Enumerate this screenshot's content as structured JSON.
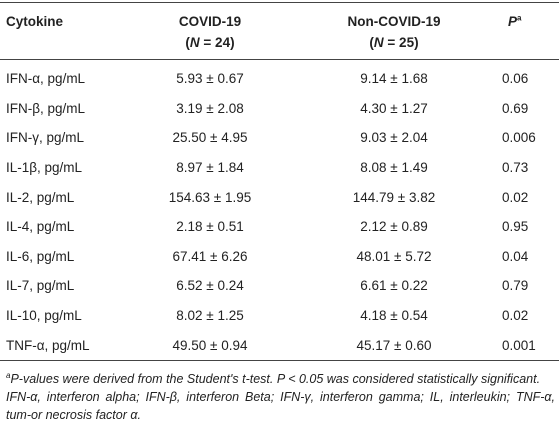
{
  "header": {
    "cytokine": "Cytokine",
    "covid": {
      "name": "COVID-19",
      "n": [
        "(",
        "N",
        " = 24)"
      ]
    },
    "noncovid": {
      "name": "Non-COVID-19",
      "n": [
        "(",
        "N",
        " = 25)"
      ]
    },
    "p": [
      "P",
      "a"
    ]
  },
  "table": {
    "rows": [
      [
        "IFN-α, pg/mL",
        "5.93 ± 0.67",
        "9.14 ± 1.68",
        "0.06"
      ],
      [
        "IFN-β, pg/mL",
        "3.19 ± 2.08",
        "4.30 ± 1.27",
        "0.69"
      ],
      [
        "IFN-γ, pg/mL",
        "25.50 ± 4.95",
        "9.03 ± 2.04",
        "0.006"
      ],
      [
        "IL-1β, pg/mL",
        "8.97 ± 1.84",
        "8.08 ± 1.49",
        "0.73"
      ],
      [
        "IL-2, pg/mL",
        "154.63 ± 1.95",
        "144.79 ± 3.82",
        "0.02"
      ],
      [
        "IL-4, pg/mL",
        "2.18 ± 0.51",
        "2.12 ± 0.89",
        "0.95"
      ],
      [
        "IL-6, pg/mL",
        "67.41 ± 6.26",
        "48.01 ± 5.72",
        "0.04"
      ],
      [
        "IL-7, pg/mL",
        "6.52 ± 0.24",
        "6.61 ± 0.22",
        "0.79"
      ],
      [
        "IL-10, pg/mL",
        "8.02 ± 1.25",
        "4.18 ± 0.54",
        "0.02"
      ],
      [
        "TNF-α, pg/mL",
        "49.50 ± 0.94",
        "45.17 ± 0.60",
        "0.001"
      ]
    ]
  },
  "footnotes": {
    "significance": [
      "a",
      "P-values were derived from the Student's t-test. P < 0.05 was considered statistically significant."
    ],
    "abbreviations": "IFN-α, interferon alpha; IFN-β, interferon Beta; IFN-γ, interferon gamma; IL, interleukin; TNF-α, tum-or necrosis factor α."
  }
}
